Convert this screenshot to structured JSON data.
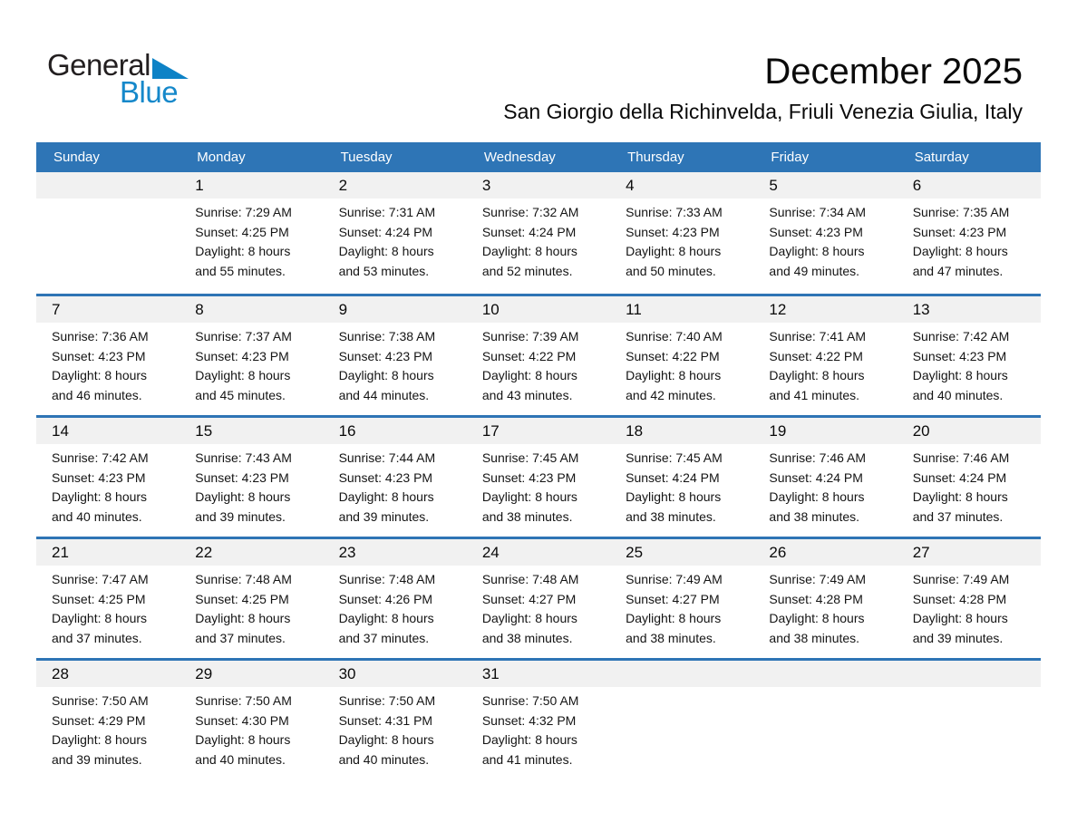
{
  "logo": {
    "general": "General",
    "blue": "Blue",
    "triangle_icon": "blue-right-triangle",
    "text_color": "#231f20",
    "blue_color": "#1588ca"
  },
  "title": "December 2025",
  "subtitle": "San Giorgio della Richinvelda, Friuli Venezia Giulia, Italy",
  "colors": {
    "header_bg": "#2e75b6",
    "row_divider": "#2e74b5",
    "day_number_strip_bg": "#f1f1f1",
    "header_text": "#ffffff",
    "body_text": "#141414"
  },
  "weekdays": [
    "Sunday",
    "Monday",
    "Tuesday",
    "Wednesday",
    "Thursday",
    "Friday",
    "Saturday"
  ],
  "weeks": [
    [
      null,
      {
        "day": "1",
        "sunrise": "Sunrise: 7:29 AM",
        "sunset": "Sunset: 4:25 PM",
        "daylight": [
          "Daylight: 8 hours",
          "and 55 minutes."
        ]
      },
      {
        "day": "2",
        "sunrise": "Sunrise: 7:31 AM",
        "sunset": "Sunset: 4:24 PM",
        "daylight": [
          "Daylight: 8 hours",
          "and 53 minutes."
        ]
      },
      {
        "day": "3",
        "sunrise": "Sunrise: 7:32 AM",
        "sunset": "Sunset: 4:24 PM",
        "daylight": [
          "Daylight: 8 hours",
          "and 52 minutes."
        ]
      },
      {
        "day": "4",
        "sunrise": "Sunrise: 7:33 AM",
        "sunset": "Sunset: 4:23 PM",
        "daylight": [
          "Daylight: 8 hours",
          "and 50 minutes."
        ]
      },
      {
        "day": "5",
        "sunrise": "Sunrise: 7:34 AM",
        "sunset": "Sunset: 4:23 PM",
        "daylight": [
          "Daylight: 8 hours",
          "and 49 minutes."
        ]
      },
      {
        "day": "6",
        "sunrise": "Sunrise: 7:35 AM",
        "sunset": "Sunset: 4:23 PM",
        "daylight": [
          "Daylight: 8 hours",
          "and 47 minutes."
        ]
      }
    ],
    [
      {
        "day": "7",
        "sunrise": "Sunrise: 7:36 AM",
        "sunset": "Sunset: 4:23 PM",
        "daylight": [
          "Daylight: 8 hours",
          "and 46 minutes."
        ]
      },
      {
        "day": "8",
        "sunrise": "Sunrise: 7:37 AM",
        "sunset": "Sunset: 4:23 PM",
        "daylight": [
          "Daylight: 8 hours",
          "and 45 minutes."
        ]
      },
      {
        "day": "9",
        "sunrise": "Sunrise: 7:38 AM",
        "sunset": "Sunset: 4:23 PM",
        "daylight": [
          "Daylight: 8 hours",
          "and 44 minutes."
        ]
      },
      {
        "day": "10",
        "sunrise": "Sunrise: 7:39 AM",
        "sunset": "Sunset: 4:22 PM",
        "daylight": [
          "Daylight: 8 hours",
          "and 43 minutes."
        ]
      },
      {
        "day": "11",
        "sunrise": "Sunrise: 7:40 AM",
        "sunset": "Sunset: 4:22 PM",
        "daylight": [
          "Daylight: 8 hours",
          "and 42 minutes."
        ]
      },
      {
        "day": "12",
        "sunrise": "Sunrise: 7:41 AM",
        "sunset": "Sunset: 4:22 PM",
        "daylight": [
          "Daylight: 8 hours",
          "and 41 minutes."
        ]
      },
      {
        "day": "13",
        "sunrise": "Sunrise: 7:42 AM",
        "sunset": "Sunset: 4:23 PM",
        "daylight": [
          "Daylight: 8 hours",
          "and 40 minutes."
        ]
      }
    ],
    [
      {
        "day": "14",
        "sunrise": "Sunrise: 7:42 AM",
        "sunset": "Sunset: 4:23 PM",
        "daylight": [
          "Daylight: 8 hours",
          "and 40 minutes."
        ]
      },
      {
        "day": "15",
        "sunrise": "Sunrise: 7:43 AM",
        "sunset": "Sunset: 4:23 PM",
        "daylight": [
          "Daylight: 8 hours",
          "and 39 minutes."
        ]
      },
      {
        "day": "16",
        "sunrise": "Sunrise: 7:44 AM",
        "sunset": "Sunset: 4:23 PM",
        "daylight": [
          "Daylight: 8 hours",
          "and 39 minutes."
        ]
      },
      {
        "day": "17",
        "sunrise": "Sunrise: 7:45 AM",
        "sunset": "Sunset: 4:23 PM",
        "daylight": [
          "Daylight: 8 hours",
          "and 38 minutes."
        ]
      },
      {
        "day": "18",
        "sunrise": "Sunrise: 7:45 AM",
        "sunset": "Sunset: 4:24 PM",
        "daylight": [
          "Daylight: 8 hours",
          "and 38 minutes."
        ]
      },
      {
        "day": "19",
        "sunrise": "Sunrise: 7:46 AM",
        "sunset": "Sunset: 4:24 PM",
        "daylight": [
          "Daylight: 8 hours",
          "and 38 minutes."
        ]
      },
      {
        "day": "20",
        "sunrise": "Sunrise: 7:46 AM",
        "sunset": "Sunset: 4:24 PM",
        "daylight": [
          "Daylight: 8 hours",
          "and 37 minutes."
        ]
      }
    ],
    [
      {
        "day": "21",
        "sunrise": "Sunrise: 7:47 AM",
        "sunset": "Sunset: 4:25 PM",
        "daylight": [
          "Daylight: 8 hours",
          "and 37 minutes."
        ]
      },
      {
        "day": "22",
        "sunrise": "Sunrise: 7:48 AM",
        "sunset": "Sunset: 4:25 PM",
        "daylight": [
          "Daylight: 8 hours",
          "and 37 minutes."
        ]
      },
      {
        "day": "23",
        "sunrise": "Sunrise: 7:48 AM",
        "sunset": "Sunset: 4:26 PM",
        "daylight": [
          "Daylight: 8 hours",
          "and 37 minutes."
        ]
      },
      {
        "day": "24",
        "sunrise": "Sunrise: 7:48 AM",
        "sunset": "Sunset: 4:27 PM",
        "daylight": [
          "Daylight: 8 hours",
          "and 38 minutes."
        ]
      },
      {
        "day": "25",
        "sunrise": "Sunrise: 7:49 AM",
        "sunset": "Sunset: 4:27 PM",
        "daylight": [
          "Daylight: 8 hours",
          "and 38 minutes."
        ]
      },
      {
        "day": "26",
        "sunrise": "Sunrise: 7:49 AM",
        "sunset": "Sunset: 4:28 PM",
        "daylight": [
          "Daylight: 8 hours",
          "and 38 minutes."
        ]
      },
      {
        "day": "27",
        "sunrise": "Sunrise: 7:49 AM",
        "sunset": "Sunset: 4:28 PM",
        "daylight": [
          "Daylight: 8 hours",
          "and 39 minutes."
        ]
      }
    ],
    [
      {
        "day": "28",
        "sunrise": "Sunrise: 7:50 AM",
        "sunset": "Sunset: 4:29 PM",
        "daylight": [
          "Daylight: 8 hours",
          "and 39 minutes."
        ]
      },
      {
        "day": "29",
        "sunrise": "Sunrise: 7:50 AM",
        "sunset": "Sunset: 4:30 PM",
        "daylight": [
          "Daylight: 8 hours",
          "and 40 minutes."
        ]
      },
      {
        "day": "30",
        "sunrise": "Sunrise: 7:50 AM",
        "sunset": "Sunset: 4:31 PM",
        "daylight": [
          "Daylight: 8 hours",
          "and 40 minutes."
        ]
      },
      {
        "day": "31",
        "sunrise": "Sunrise: 7:50 AM",
        "sunset": "Sunset: 4:32 PM",
        "daylight": [
          "Daylight: 8 hours",
          "and 41 minutes."
        ]
      },
      null,
      null,
      null
    ]
  ]
}
